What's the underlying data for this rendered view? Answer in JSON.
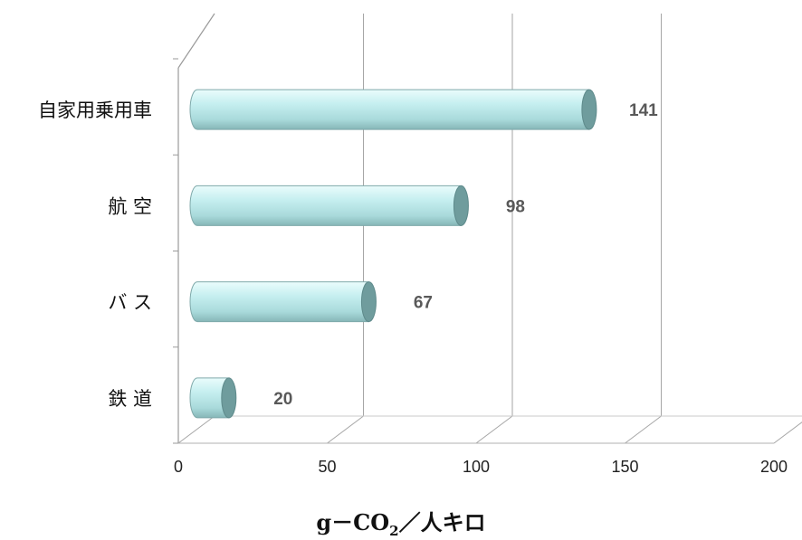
{
  "chart_data": {
    "type": "bar",
    "orientation": "horizontal",
    "style": "3d-cylinder",
    "categories": [
      "自家用乗用車",
      "航 空",
      "バ ス",
      "鉄 道"
    ],
    "values": [
      141,
      98,
      67,
      20
    ],
    "xlabel": "g－CO2／人キロ",
    "xlim": [
      0,
      200
    ],
    "xticks": [
      0,
      50,
      100,
      150,
      200
    ],
    "grid": true,
    "legend": "none",
    "bar_color": "#c6eff0",
    "bar_shade": "#6f9c9d"
  },
  "xaxis_title": {
    "prefix": "g－CO",
    "subscript": "2",
    "suffix": "／人キロ"
  }
}
